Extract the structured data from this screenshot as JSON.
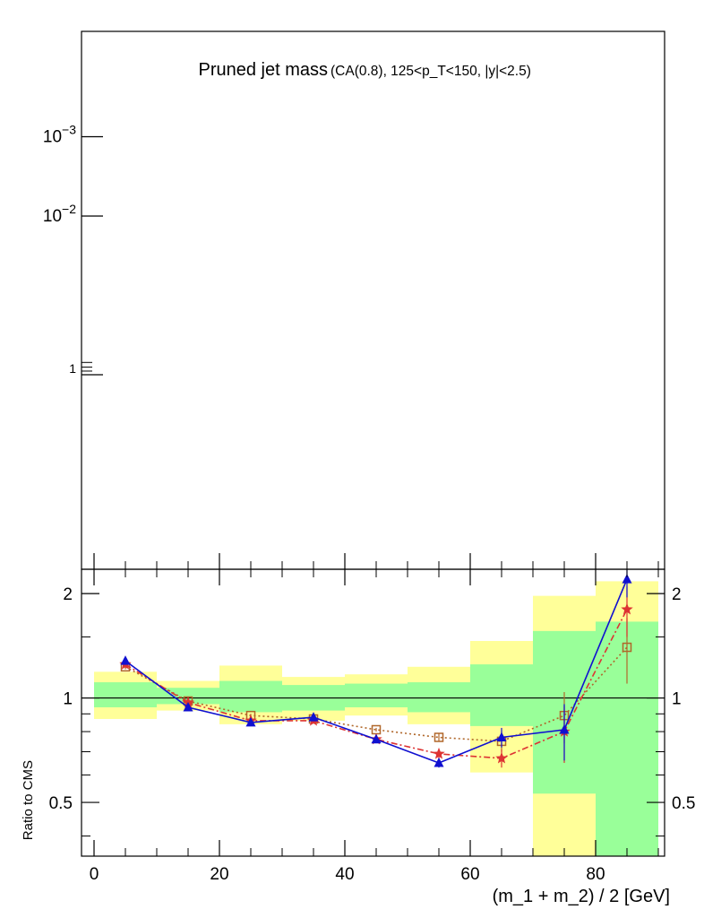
{
  "chart_data": {
    "type": "line",
    "title": "Pruned jet mass",
    "subtitle": "(CA(0.8), 125<p_T<150, |y|<2.5)",
    "upper_panel": {
      "scale": "log",
      "ytick_labels": [
        "1",
        "10^-2",
        "10^-3"
      ],
      "ytick_values": [
        1,
        0.01,
        0.001
      ]
    },
    "lower_panel": {
      "ylabel": "Ratio to CMS",
      "scale": "log",
      "ylim": [
        0.35,
        2.35
      ],
      "ytick_labels": [
        "0.5",
        "1",
        "2"
      ],
      "ytick_values": [
        0.5,
        1,
        2
      ],
      "reference_line": 1
    },
    "xlabel": "(m_1 + m_2) / 2 [GeV]",
    "xlim": [
      -2,
      91
    ],
    "xtick_labels": [
      "0",
      "20",
      "40",
      "60",
      "80"
    ],
    "xtick_values": [
      0,
      20,
      40,
      60,
      80
    ],
    "bins": [
      [
        0,
        10
      ],
      [
        10,
        20
      ],
      [
        20,
        30
      ],
      [
        30,
        40
      ],
      [
        40,
        50
      ],
      [
        50,
        60
      ],
      [
        60,
        70
      ],
      [
        70,
        80
      ],
      [
        80,
        90
      ]
    ],
    "uncertainty_bands": {
      "outer": {
        "color": "#ffff99",
        "low": [
          0.87,
          0.92,
          0.84,
          0.86,
          0.89,
          0.84,
          0.61,
          0.35,
          0.35
        ],
        "high": [
          1.19,
          1.12,
          1.24,
          1.15,
          1.17,
          1.23,
          1.46,
          1.97,
          2.17
        ]
      },
      "inner": {
        "color": "#99ff99",
        "low": [
          0.94,
          0.96,
          0.91,
          0.92,
          0.94,
          0.91,
          0.83,
          0.53,
          0.35
        ],
        "high": [
          1.11,
          1.07,
          1.12,
          1.09,
          1.1,
          1.11,
          1.25,
          1.56,
          1.66
        ]
      }
    },
    "series": [
      {
        "color": "#1010d0",
        "line": "solid",
        "marker": "triangle",
        "x": [
          5,
          15,
          25,
          35,
          45,
          55,
          65,
          75,
          85
        ],
        "y": [
          1.28,
          0.94,
          0.85,
          0.88,
          0.76,
          0.65,
          0.77,
          0.81,
          2.2
        ],
        "err": [
          0.02,
          0.01,
          0.01,
          0.01,
          0.01,
          0.02,
          0.05,
          0.15,
          0.25
        ]
      },
      {
        "color": "#dd3333",
        "line": "dashdot",
        "marker": "star",
        "x": [
          5,
          15,
          25,
          35,
          45,
          55,
          65,
          75,
          85
        ],
        "y": [
          1.25,
          0.97,
          0.86,
          0.86,
          0.76,
          0.69,
          0.67,
          0.8,
          1.8
        ],
        "err": [
          0.02,
          0.01,
          0.01,
          0.01,
          0.01,
          0.02,
          0.04,
          0.15,
          0.3
        ]
      },
      {
        "color": "#b0672a",
        "line": "dotted",
        "marker": "open-square",
        "x": [
          5,
          15,
          25,
          35,
          45,
          55,
          65,
          75,
          85
        ],
        "y": [
          1.23,
          0.98,
          0.89,
          0.87,
          0.81,
          0.77,
          0.75,
          0.89,
          1.4
        ],
        "err": [
          0.02,
          0.01,
          0.01,
          0.01,
          0.01,
          0.02,
          0.05,
          0.15,
          0.3
        ]
      }
    ]
  }
}
